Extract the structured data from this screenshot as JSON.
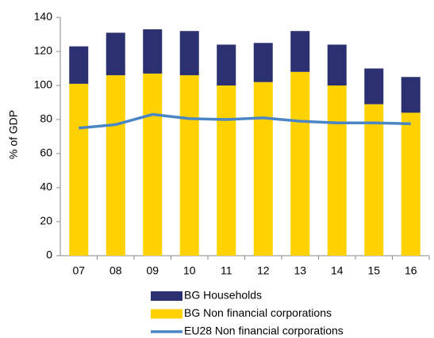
{
  "chart_data": {
    "type": "bar",
    "stacked": true,
    "y_label": "% of GDP",
    "categories": [
      "07",
      "08",
      "09",
      "10",
      "11",
      "12",
      "13",
      "14",
      "15",
      "16"
    ],
    "series": [
      {
        "name": "BG Households",
        "type": "bar",
        "color": "#2b3070",
        "values": [
          22,
          25,
          26,
          26,
          24,
          23,
          24,
          24,
          21,
          21
        ]
      },
      {
        "name": "BG Non financial corporations",
        "type": "bar",
        "color": "#ffd200",
        "values": [
          101,
          106,
          107,
          106,
          100,
          102,
          108,
          100,
          89,
          84
        ]
      },
      {
        "name": "EU28 Non financial corporations",
        "type": "line",
        "color": "#4a86c5",
        "values": [
          75,
          77,
          83,
          80.5,
          80,
          81,
          79,
          78,
          78,
          77.5
        ]
      }
    ],
    "stack_order": [
      1,
      0
    ],
    "ylim": [
      0,
      140
    ],
    "yticks": [
      0,
      20,
      40,
      60,
      80,
      100,
      120,
      140
    ],
    "grid": false,
    "legend": "bottom"
  }
}
